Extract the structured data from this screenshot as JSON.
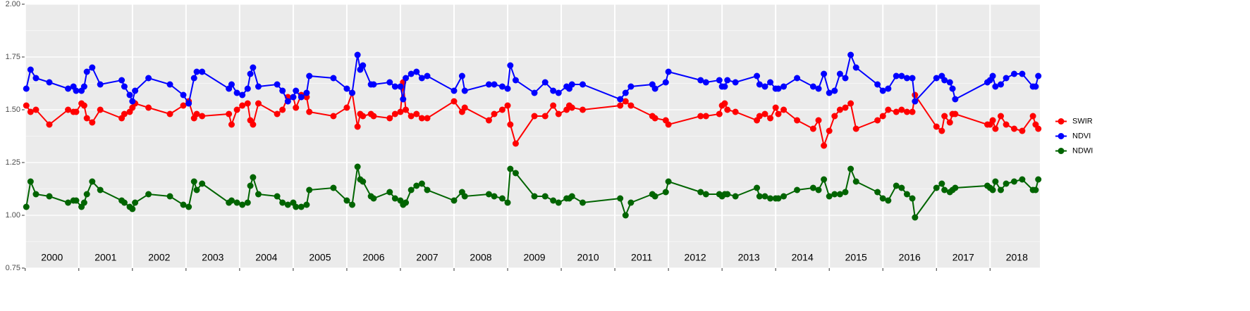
{
  "chart_data": {
    "type": "line",
    "x": [
      2000.02,
      2000.1,
      2000.2,
      2000.45,
      2000.8,
      2000.9,
      2000.95,
      2001.05,
      2001.1,
      2001.15,
      2001.25,
      2001.4,
      2001.8,
      2001.85,
      2001.95,
      2002.0,
      2002.05,
      2002.3,
      2002.7,
      2002.95,
      2003.05,
      2003.15,
      2003.2,
      2003.3,
      2003.8,
      2003.85,
      2003.95,
      2004.05,
      2004.15,
      2004.2,
      2004.25,
      2004.35,
      2004.7,
      2004.8,
      2004.9,
      2005.0,
      2005.05,
      2005.15,
      2005.25,
      2005.3,
      2005.75,
      2006.0,
      2006.1,
      2006.2,
      2006.25,
      2006.3,
      2006.45,
      2006.5,
      2006.8,
      2006.9,
      2007.0,
      2007.05,
      2007.1,
      2007.2,
      2007.3,
      2007.4,
      2007.5,
      2008.0,
      2008.15,
      2008.2,
      2008.65,
      2008.75,
      2008.9,
      2009.0,
      2009.05,
      2009.15,
      2009.5,
      2009.7,
      2009.85,
      2009.95,
      2010.1,
      2010.15,
      2010.2,
      2010.4,
      2011.1,
      2011.2,
      2011.3,
      2011.7,
      2011.75,
      2011.95,
      2012.0,
      2012.6,
      2012.7,
      2012.95,
      2013.0,
      2013.05,
      2013.1,
      2013.25,
      2013.65,
      2013.7,
      2013.8,
      2013.9,
      2014.0,
      2014.05,
      2014.15,
      2014.4,
      2014.7,
      2014.8,
      2014.9,
      2015.0,
      2015.1,
      2015.2,
      2015.3,
      2015.4,
      2015.5,
      2015.9,
      2016.0,
      2016.1,
      2016.25,
      2016.35,
      2016.45,
      2016.55,
      2016.6,
      2017.0,
      2017.1,
      2017.15,
      2017.25,
      2017.3,
      2017.35,
      2017.95,
      2018.0,
      2018.05,
      2018.1,
      2018.2,
      2018.3,
      2018.45,
      2018.6,
      2018.8,
      2018.85,
      2018.9
    ],
    "series": [
      {
        "name": "SWIR",
        "color": "#ff0000",
        "values": [
          1.52,
          1.49,
          1.5,
          1.43,
          1.5,
          1.49,
          1.49,
          1.53,
          1.52,
          1.46,
          1.44,
          1.5,
          1.46,
          1.48,
          1.49,
          1.51,
          1.53,
          1.51,
          1.48,
          1.52,
          1.54,
          1.46,
          1.48,
          1.47,
          1.48,
          1.43,
          1.5,
          1.52,
          1.53,
          1.45,
          1.43,
          1.53,
          1.48,
          1.5,
          1.56,
          1.56,
          1.51,
          1.57,
          1.56,
          1.49,
          1.47,
          1.51,
          1.58,
          1.42,
          1.48,
          1.47,
          1.48,
          1.47,
          1.46,
          1.48,
          1.49,
          1.63,
          1.5,
          1.47,
          1.48,
          1.46,
          1.46,
          1.54,
          1.49,
          1.51,
          1.45,
          1.48,
          1.5,
          1.52,
          1.43,
          1.34,
          1.47,
          1.47,
          1.52,
          1.48,
          1.5,
          1.52,
          1.51,
          1.5,
          1.52,
          1.54,
          1.52,
          1.47,
          1.46,
          1.45,
          1.43,
          1.47,
          1.47,
          1.48,
          1.52,
          1.53,
          1.5,
          1.49,
          1.45,
          1.47,
          1.48,
          1.46,
          1.51,
          1.48,
          1.5,
          1.45,
          1.41,
          1.45,
          1.33,
          1.4,
          1.47,
          1.5,
          1.51,
          1.53,
          1.41,
          1.45,
          1.47,
          1.5,
          1.49,
          1.5,
          1.49,
          1.49,
          1.57,
          1.42,
          1.4,
          1.47,
          1.44,
          1.48,
          1.48,
          1.43,
          1.43,
          1.45,
          1.41,
          1.47,
          1.43,
          1.41,
          1.4,
          1.47,
          1.43,
          1.41
        ]
      },
      {
        "name": "NDVI",
        "color": "#0000ff",
        "values": [
          1.6,
          1.69,
          1.65,
          1.63,
          1.6,
          1.61,
          1.59,
          1.59,
          1.61,
          1.68,
          1.7,
          1.62,
          1.64,
          1.61,
          1.57,
          1.54,
          1.59,
          1.65,
          1.62,
          1.57,
          1.53,
          1.65,
          1.68,
          1.68,
          1.6,
          1.62,
          1.58,
          1.57,
          1.6,
          1.67,
          1.7,
          1.61,
          1.62,
          1.59,
          1.54,
          1.56,
          1.59,
          1.56,
          1.58,
          1.66,
          1.65,
          1.6,
          1.58,
          1.76,
          1.69,
          1.71,
          1.62,
          1.62,
          1.63,
          1.61,
          1.61,
          1.55,
          1.65,
          1.67,
          1.68,
          1.65,
          1.66,
          1.59,
          1.66,
          1.59,
          1.62,
          1.62,
          1.61,
          1.6,
          1.71,
          1.64,
          1.58,
          1.63,
          1.59,
          1.58,
          1.61,
          1.6,
          1.62,
          1.62,
          1.55,
          1.58,
          1.61,
          1.62,
          1.6,
          1.63,
          1.68,
          1.64,
          1.63,
          1.64,
          1.61,
          1.61,
          1.64,
          1.63,
          1.66,
          1.62,
          1.61,
          1.63,
          1.6,
          1.6,
          1.61,
          1.65,
          1.61,
          1.6,
          1.67,
          1.58,
          1.59,
          1.67,
          1.65,
          1.76,
          1.7,
          1.62,
          1.59,
          1.6,
          1.66,
          1.66,
          1.65,
          1.65,
          1.54,
          1.65,
          1.66,
          1.64,
          1.63,
          1.6,
          1.55,
          1.63,
          1.64,
          1.66,
          1.61,
          1.62,
          1.65,
          1.67,
          1.67,
          1.61,
          1.61,
          1.66
        ]
      },
      {
        "name": "NDWI",
        "color": "#006400",
        "values": [
          1.04,
          1.16,
          1.1,
          1.09,
          1.06,
          1.07,
          1.07,
          1.04,
          1.06,
          1.1,
          1.16,
          1.12,
          1.07,
          1.06,
          1.04,
          1.03,
          1.06,
          1.1,
          1.09,
          1.05,
          1.04,
          1.16,
          1.12,
          1.15,
          1.06,
          1.07,
          1.06,
          1.05,
          1.06,
          1.14,
          1.18,
          1.1,
          1.09,
          1.06,
          1.05,
          1.06,
          1.04,
          1.04,
          1.05,
          1.12,
          1.13,
          1.07,
          1.05,
          1.23,
          1.17,
          1.16,
          1.09,
          1.08,
          1.11,
          1.08,
          1.07,
          1.05,
          1.06,
          1.12,
          1.14,
          1.15,
          1.12,
          1.07,
          1.11,
          1.09,
          1.1,
          1.09,
          1.08,
          1.06,
          1.22,
          1.2,
          1.09,
          1.09,
          1.07,
          1.06,
          1.08,
          1.08,
          1.09,
          1.06,
          1.08,
          1.0,
          1.06,
          1.1,
          1.09,
          1.11,
          1.16,
          1.11,
          1.1,
          1.1,
          1.09,
          1.1,
          1.1,
          1.09,
          1.13,
          1.09,
          1.09,
          1.08,
          1.08,
          1.08,
          1.09,
          1.12,
          1.13,
          1.12,
          1.17,
          1.09,
          1.1,
          1.1,
          1.11,
          1.22,
          1.16,
          1.11,
          1.08,
          1.07,
          1.14,
          1.13,
          1.1,
          1.08,
          0.99,
          1.13,
          1.15,
          1.12,
          1.11,
          1.12,
          1.13,
          1.14,
          1.13,
          1.12,
          1.16,
          1.12,
          1.15,
          1.16,
          1.17,
          1.12,
          1.12,
          1.17
        ]
      }
    ],
    "xlim": [
      1999.99,
      2018.93
    ],
    "xticks": [
      2000,
      2001,
      2002,
      2003,
      2004,
      2005,
      2006,
      2007,
      2008,
      2009,
      2010,
      2011,
      2012,
      2013,
      2014,
      2015,
      2016,
      2017,
      2018
    ],
    "ylim": [
      0.75,
      2.0
    ],
    "yticks": [
      {
        "value": 0.75,
        "label": "0.75"
      },
      {
        "value": 1.0,
        "label": "1.00"
      },
      {
        "value": 1.25,
        "label": "1.25"
      },
      {
        "value": 1.5,
        "label": "1.50"
      },
      {
        "value": 1.75,
        "label": "1.75"
      },
      {
        "value": 2.0,
        "label": "2.00"
      }
    ],
    "grid": true,
    "legend": "right"
  }
}
